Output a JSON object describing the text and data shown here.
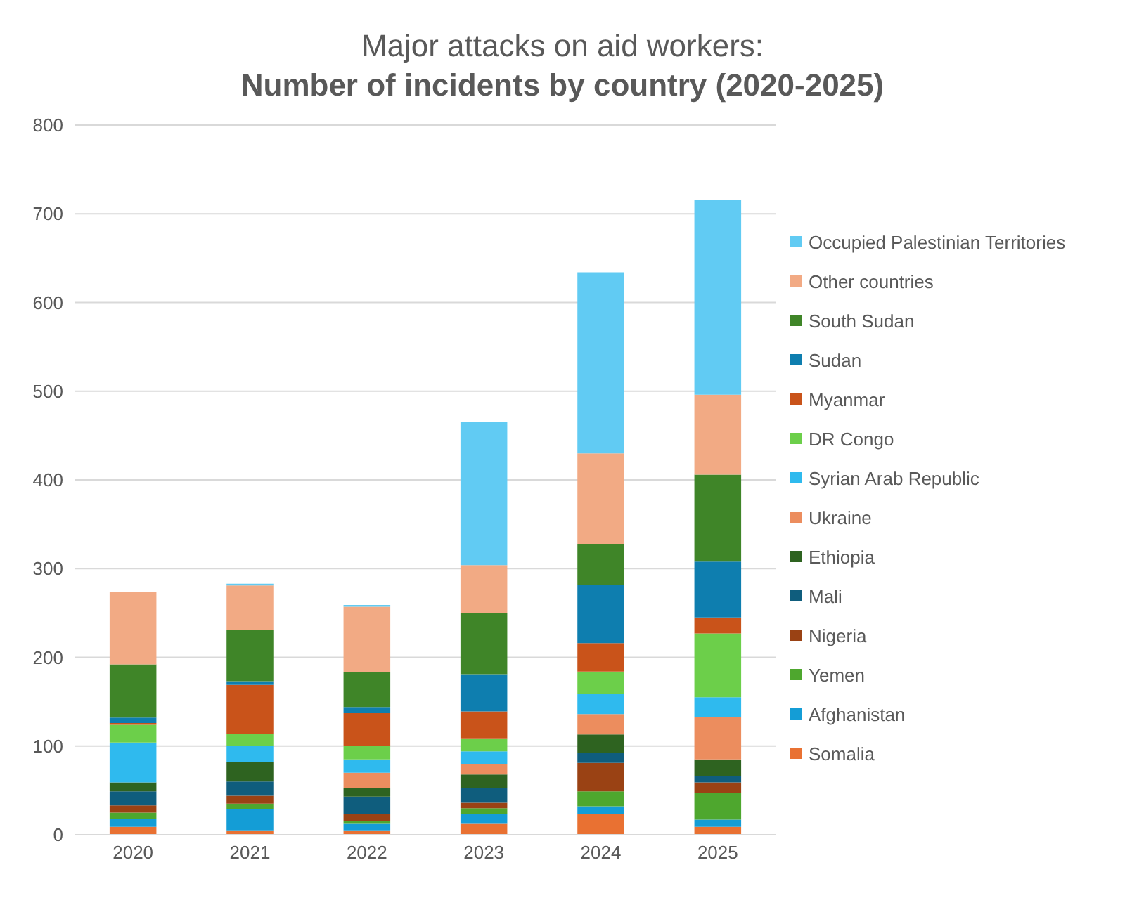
{
  "chart_data": {
    "type": "bar",
    "title": "Major attacks on aid workers:",
    "subtitle": "Number of incidents by country (2020-2025)",
    "categories": [
      "2020",
      "2021",
      "2022",
      "2023",
      "2024",
      "2025"
    ],
    "stacked": true,
    "ylim": [
      0,
      800
    ],
    "yticks": [
      0,
      100,
      200,
      300,
      400,
      500,
      600,
      700,
      800
    ],
    "grid": "y",
    "legend": "right",
    "series": [
      {
        "name": "Somalia",
        "color": "#e97132",
        "values": [
          9,
          5,
          5,
          13,
          23,
          9
        ]
      },
      {
        "name": "Afghanistan",
        "color": "#149dd6",
        "values": [
          9,
          24,
          8,
          10,
          9,
          8
        ]
      },
      {
        "name": "Yemen",
        "color": "#4ea72e",
        "values": [
          7,
          6,
          2,
          7,
          17,
          30
        ]
      },
      {
        "name": "Nigeria",
        "color": "#9a4214",
        "values": [
          8,
          9,
          8,
          6,
          32,
          12
        ]
      },
      {
        "name": "Mali",
        "color": "#0f5d7d",
        "values": [
          16,
          16,
          20,
          17,
          11,
          7
        ]
      },
      {
        "name": "Ethiopia",
        "color": "#2e6320",
        "values": [
          10,
          22,
          10,
          15,
          21,
          19
        ]
      },
      {
        "name": "Ukraine",
        "color": "#ec8d5e",
        "values": [
          0,
          0,
          17,
          12,
          23,
          48
        ]
      },
      {
        "name": "Syrian Arab Republic",
        "color": "#2fbaee",
        "values": [
          45,
          18,
          15,
          14,
          23,
          22
        ]
      },
      {
        "name": "DR Congo",
        "color": "#6ccf4a",
        "values": [
          20,
          14,
          15,
          14,
          25,
          72
        ]
      },
      {
        "name": "Myanmar",
        "color": "#c9531a",
        "values": [
          2,
          55,
          37,
          31,
          32,
          18
        ]
      },
      {
        "name": "Sudan",
        "color": "#0e7eaf",
        "values": [
          6,
          4,
          7,
          42,
          66,
          63
        ]
      },
      {
        "name": "South Sudan",
        "color": "#3f8528",
        "values": [
          60,
          58,
          39,
          69,
          46,
          98
        ]
      },
      {
        "name": "Other countries",
        "color": "#f2aa84",
        "values": [
          82,
          50,
          74,
          54,
          102,
          90
        ]
      },
      {
        "name": "Occupied Palestinian Territories",
        "color": "#61cbf3",
        "values": [
          0,
          2,
          2,
          161,
          204,
          220
        ]
      }
    ]
  }
}
